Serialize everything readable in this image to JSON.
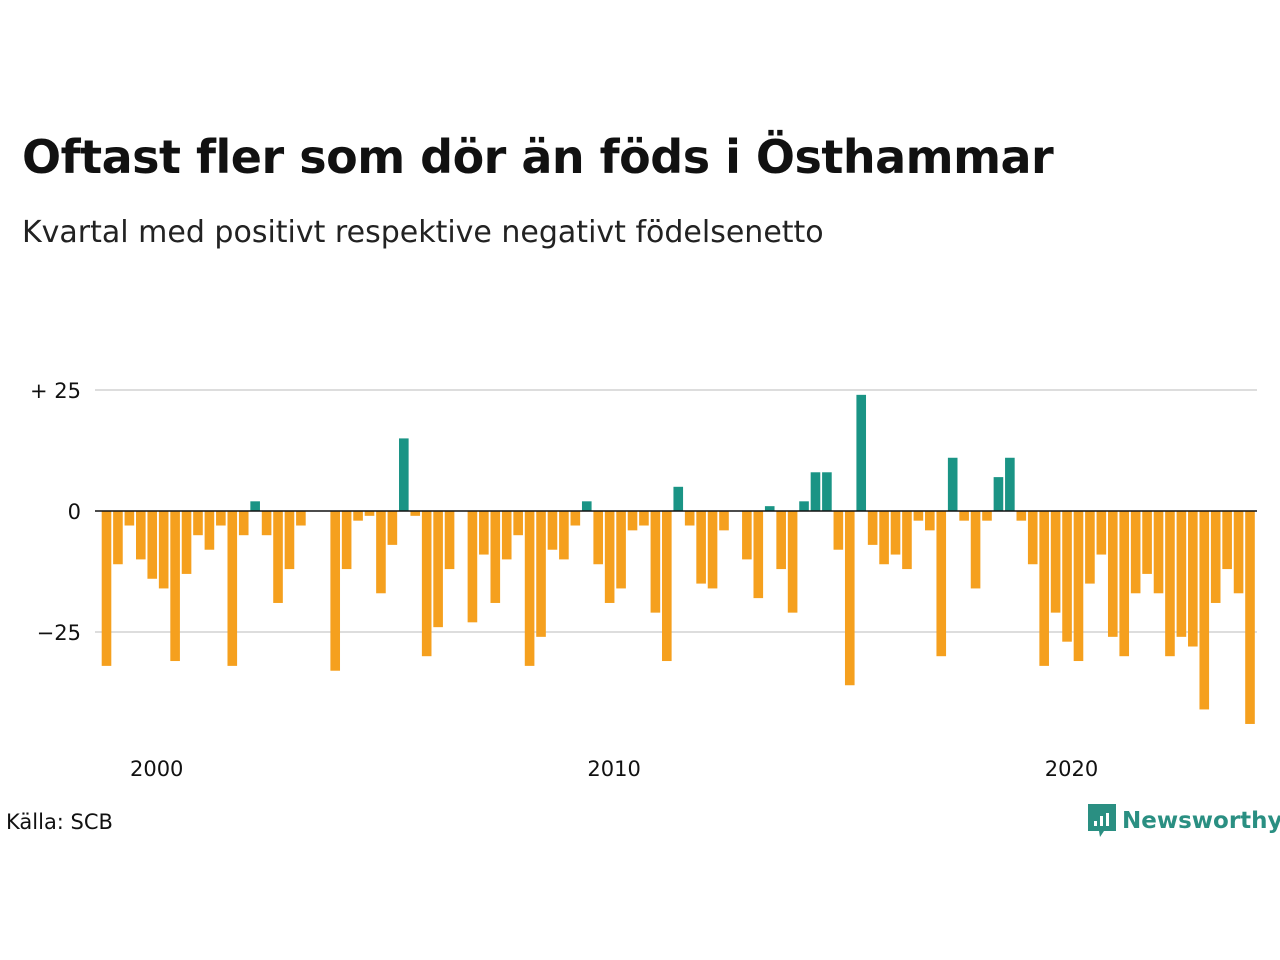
{
  "chart_data": {
    "type": "bar",
    "title": "Oftast fler som dör än föds i Östhammar",
    "subtitle": "Kvartal med positivt respektive negativt födelsenetto",
    "xlabel": "",
    "ylabel": "",
    "ylim": [
      -44,
      25
    ],
    "yticks": [
      {
        "value": 25,
        "label": "+ 25"
      },
      {
        "value": 0,
        "label": "0"
      },
      {
        "value": -25,
        "label": "−25"
      }
    ],
    "x_start_year": 2000,
    "xticks": [
      {
        "value": 2000,
        "label": "2000"
      },
      {
        "value": 2010,
        "label": "2010"
      },
      {
        "value": 2020,
        "label": "2020"
      }
    ],
    "grid": true,
    "positive_color": "#1a9485",
    "negative_color": "#f5a01e",
    "values": [
      -32,
      -11,
      -3,
      -10,
      -14,
      -16,
      -31,
      -13,
      -5,
      -8,
      -3,
      -32,
      -5,
      2,
      -5,
      -19,
      -12,
      -3,
      0,
      0,
      -33,
      -12,
      -2,
      -1,
      -17,
      -7,
      15,
      -1,
      -30,
      -24,
      -12,
      0,
      -23,
      -9,
      -19,
      -10,
      -5,
      -32,
      -26,
      -8,
      -10,
      -3,
      2,
      -11,
      -19,
      -16,
      -4,
      -3,
      -21,
      -31,
      5,
      -3,
      -15,
      -16,
      -4,
      0,
      -10,
      -18,
      1,
      -12,
      -21,
      2,
      8,
      8,
      -8,
      -36,
      24,
      -7,
      -11,
      -9,
      -12,
      -2,
      -4,
      -30,
      11,
      -2,
      -16,
      -2,
      7,
      11,
      -2,
      -11,
      -32,
      -21,
      -27,
      -31,
      -15,
      -9,
      -26,
      -30,
      -17,
      -13,
      -17,
      -30,
      -26,
      -28,
      -41,
      -19,
      -12,
      -17,
      -44
    ],
    "source": "Källa: SCB",
    "brand": "Newsworthy"
  }
}
